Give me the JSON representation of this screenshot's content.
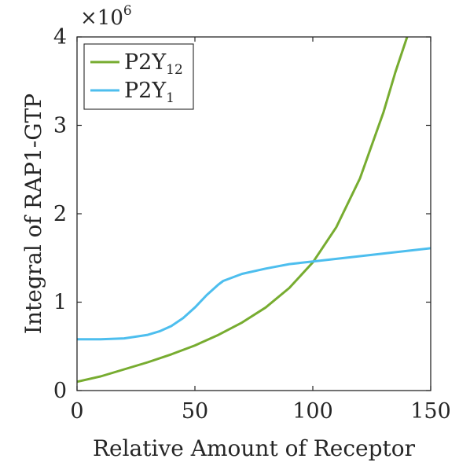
{
  "chart_data": {
    "type": "line",
    "xlabel": "Relative Amount of Receptor",
    "ylabel": "Integral of RAP1-GTP",
    "xlim": [
      0,
      150
    ],
    "ylim": [
      0,
      4000000
    ],
    "x_ticks": [
      "0",
      "50",
      "100",
      "150"
    ],
    "y_ticks": [
      "0",
      "1",
      "2",
      "3",
      "4"
    ],
    "y_multiplier": {
      "base": "×10",
      "exponent": "6"
    },
    "legend": {
      "position": "top-left"
    },
    "grid": false,
    "series": [
      {
        "name": "P2Y12",
        "label_main": "P2Y",
        "label_sub": "12",
        "color": "#77AC30",
        "x": [
          0,
          10,
          20,
          30,
          40,
          50,
          60,
          70,
          80,
          90,
          100,
          110,
          120,
          130,
          135,
          140
        ],
        "y": [
          100000,
          160000,
          240000,
          320000,
          410000,
          510000,
          630000,
          770000,
          940000,
          1160000,
          1450000,
          1850000,
          2400000,
          3150000,
          3600000,
          4000000
        ]
      },
      {
        "name": "P2Y1",
        "label_main": "P2Y",
        "label_sub": "1",
        "color": "#4DBEEE",
        "x": [
          0,
          10,
          20,
          30,
          35,
          40,
          45,
          50,
          55,
          60,
          62,
          65,
          70,
          80,
          90,
          100,
          110,
          120,
          130,
          140,
          150
        ],
        "y": [
          580000,
          580000,
          590000,
          630000,
          670000,
          730000,
          820000,
          940000,
          1080000,
          1200000,
          1240000,
          1270000,
          1320000,
          1380000,
          1430000,
          1460000,
          1490000,
          1520000,
          1550000,
          1580000,
          1610000
        ]
      }
    ]
  }
}
